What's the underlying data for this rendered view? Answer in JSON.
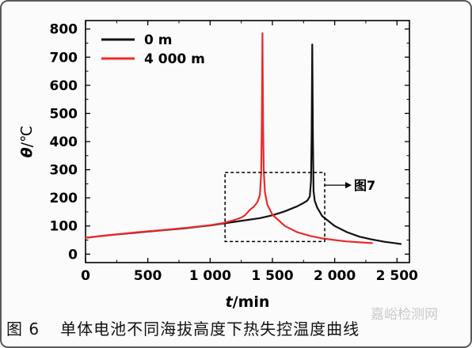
{
  "chart_data": {
    "type": "line",
    "xlabel_var": "t",
    "xlabel_unit": "/min",
    "ylabel_var": "θ",
    "ylabel_unit": "/℃",
    "xlim": [
      0,
      2600
    ],
    "ylim": [
      -30,
      830
    ],
    "x_ticks": [
      0,
      500,
      1000,
      1500,
      2000,
      2500
    ],
    "x_tick_labels": [
      "0",
      "500",
      "1 000",
      "1 500",
      "2 000",
      "2 500"
    ],
    "y_ticks": [
      0,
      100,
      200,
      300,
      400,
      500,
      600,
      700,
      800
    ],
    "y_tick_labels": [
      "0",
      "100",
      "200",
      "300",
      "400",
      "500",
      "600",
      "700",
      "800"
    ],
    "grid": false,
    "legend": "top-left",
    "series": [
      {
        "name": "0 m",
        "color": "#111111",
        "x": [
          0,
          200,
          400,
          600,
          800,
          1000,
          1200,
          1400,
          1500,
          1600,
          1700,
          1750,
          1780,
          1800,
          1810,
          1815,
          1820,
          1825,
          1830,
          1840,
          1860,
          1900,
          2000,
          2100,
          2200,
          2300,
          2400,
          2500,
          2530
        ],
        "y": [
          58,
          68,
          76,
          84,
          92,
          102,
          115,
          128,
          138,
          152,
          170,
          182,
          190,
          205,
          260,
          420,
          745,
          420,
          225,
          190,
          165,
          135,
          100,
          78,
          62,
          52,
          44,
          38,
          36
        ]
      },
      {
        "name": "4 000 m",
        "color": "#ee2a2a",
        "x": [
          0,
          200,
          400,
          600,
          800,
          1000,
          1100,
          1200,
          1250,
          1280,
          1300,
          1320,
          1350,
          1380,
          1400,
          1410,
          1415,
          1420,
          1425,
          1430,
          1440,
          1460,
          1500,
          1600,
          1700,
          1800,
          1900,
          2000,
          2100,
          2200,
          2300
        ],
        "y": [
          58,
          68,
          77,
          85,
          93,
          103,
          110,
          122,
          130,
          138,
          148,
          158,
          168,
          185,
          210,
          290,
          460,
          785,
          460,
          300,
          220,
          175,
          140,
          100,
          78,
          65,
          56,
          50,
          45,
          42,
          39
        ]
      }
    ],
    "annotation": {
      "box_x": [
        1120,
        1920
      ],
      "box_y": [
        45,
        290
      ],
      "label": "图7"
    }
  },
  "caption": {
    "number": "图 6",
    "text": "单体电池不同海拔高度下热失控温度曲线"
  },
  "watermark": "嘉峪检测网"
}
